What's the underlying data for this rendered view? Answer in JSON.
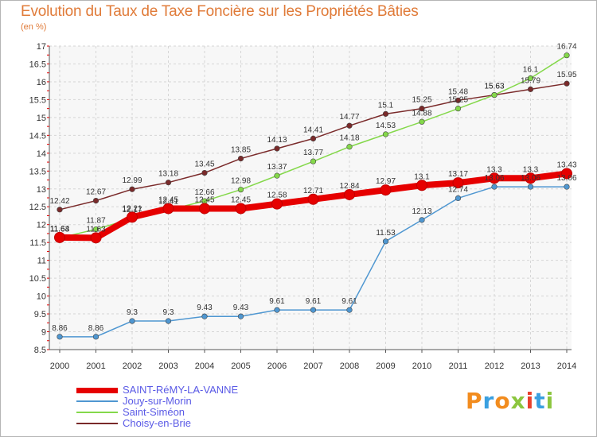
{
  "chart_data": {
    "type": "line",
    "title": "Evolution du Taux de Taxe Foncière sur les Propriétés Bâties",
    "unit_label": "(en %)",
    "xlabel": "",
    "ylabel": "",
    "x": [
      "2000",
      "2001",
      "2002",
      "2003",
      "2004",
      "2005",
      "2006",
      "2007",
      "2008",
      "2009",
      "2010",
      "2011",
      "2012",
      "2013",
      "2014"
    ],
    "ylim": [
      8.5,
      17
    ],
    "yticks": [
      "8.5",
      "9",
      "9.5",
      "10",
      "10.5",
      "11",
      "11.5",
      "12",
      "12.5",
      "13",
      "13.5",
      "14",
      "14.5",
      "15",
      "15.5",
      "16",
      "16.5",
      "17"
    ],
    "grid": true,
    "legend_position": "bottom-left",
    "series": [
      {
        "name": "SAINT-RéMY-LA-VANNE",
        "color": "#e60000",
        "values": [
          11.64,
          11.63,
          12.21,
          12.45,
          12.45,
          12.45,
          12.58,
          12.71,
          12.84,
          12.97,
          13.1,
          13.17,
          13.3,
          13.3,
          13.43
        ],
        "labels": [
          "11.64",
          "11.63",
          "12.21",
          "12.45",
          "12.45",
          "12.45",
          "12.58",
          "12.71",
          "12.84",
          "12.97",
          "13.1",
          "13.17",
          "13.3",
          "13.3",
          "13.43"
        ]
      },
      {
        "name": "Jouy-sur-Morin",
        "color": "#4f97d1",
        "values": [
          8.86,
          8.86,
          9.3,
          9.3,
          9.43,
          9.43,
          9.61,
          9.61,
          9.61,
          11.53,
          12.13,
          12.74,
          13.06,
          13.06,
          13.06
        ],
        "labels": [
          "8.86",
          "8.86",
          "9.3",
          "9.3",
          "9.43",
          "9.43",
          "9.61",
          "9.61",
          "9.61",
          "11.53",
          "12.13",
          "12.74",
          "13.06",
          "13.06",
          "13.06"
        ]
      },
      {
        "name": "Saint-Siméon",
        "color": "#84d84a",
        "values": [
          11.63,
          11.87,
          12.17,
          12.41,
          12.66,
          12.98,
          13.37,
          13.77,
          14.18,
          14.53,
          14.88,
          15.25,
          15.63,
          16.1,
          16.74
        ],
        "labels": [
          "11.63",
          "11.87",
          "12.17",
          "12.41",
          "12.66",
          "12.98",
          "13.37",
          "13.77",
          "14.18",
          "14.53",
          "14.88",
          "15.25",
          "15.63",
          "16.1",
          "16.74"
        ]
      },
      {
        "name": "Choisy-en-Brie",
        "color": "#7a2a2a",
        "values": [
          12.42,
          12.67,
          12.99,
          13.18,
          13.45,
          13.85,
          14.13,
          14.41,
          14.77,
          15.1,
          15.25,
          15.48,
          15.63,
          15.79,
          15.95
        ],
        "labels": [
          "12.42",
          "12.67",
          "12.99",
          "13.18",
          "13.45",
          "13.85",
          "14.13",
          "14.41",
          "14.77",
          "15.1",
          "15.25",
          "15.48",
          "15.63",
          "15.79",
          "15.95"
        ]
      }
    ]
  },
  "logo": {
    "letters": [
      "P",
      "r",
      "o",
      "x",
      "i",
      "t",
      "i"
    ],
    "colors": [
      "#f28c1e",
      "#3aa0e0",
      "#f28c1e",
      "#8cc63e",
      "#e8412c",
      "#3aa0e0",
      "#8cc63e"
    ]
  }
}
